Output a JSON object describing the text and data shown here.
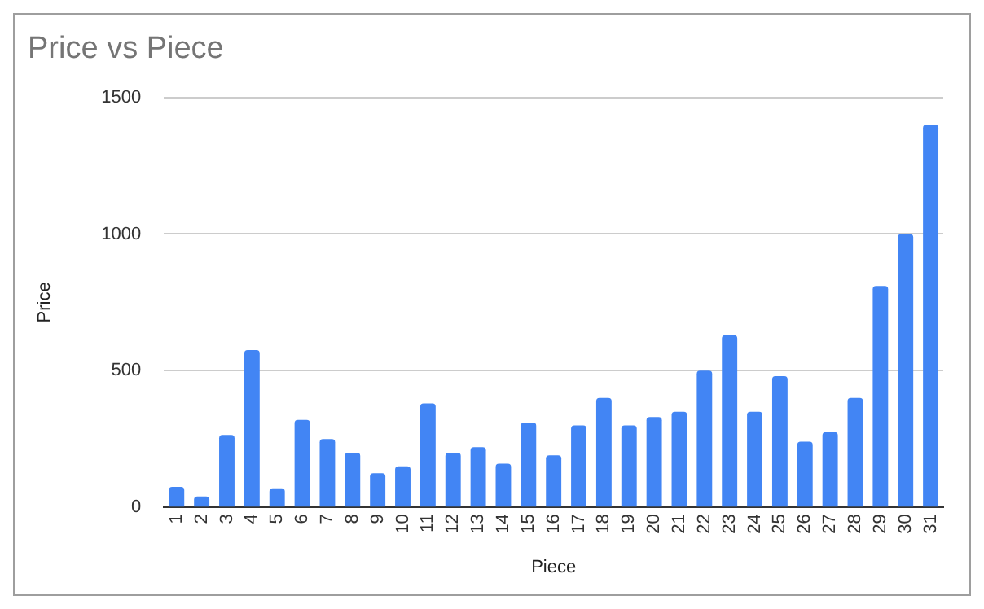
{
  "chart_data": {
    "type": "bar",
    "title": "Price vs Piece",
    "xlabel": "Piece",
    "ylabel": "Price",
    "categories": [
      "1",
      "2",
      "3",
      "4",
      "5",
      "6",
      "7",
      "8",
      "9",
      "10",
      "11",
      "12",
      "13",
      "14",
      "15",
      "16",
      "17",
      "18",
      "19",
      "20",
      "21",
      "22",
      "23",
      "24",
      "25",
      "26",
      "27",
      "28",
      "29",
      "30",
      "31"
    ],
    "values": [
      75,
      40,
      265,
      575,
      70,
      320,
      250,
      200,
      125,
      150,
      380,
      200,
      220,
      160,
      310,
      190,
      300,
      400,
      300,
      330,
      350,
      500,
      630,
      350,
      480,
      240,
      275,
      400,
      810,
      1000,
      1400
    ],
    "color": "#4285f4",
    "ylim": [
      0,
      1500
    ],
    "yticks": [
      0,
      500,
      1000,
      1500
    ],
    "grid": "y",
    "legend": false
  }
}
